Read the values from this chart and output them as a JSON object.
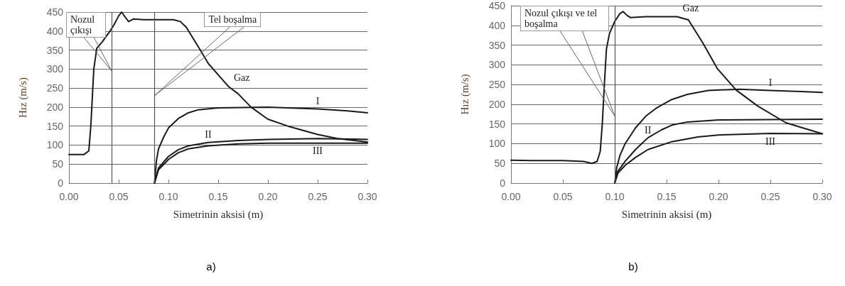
{
  "chart_data": [
    {
      "type": "line",
      "xlabel": "Simetrinin aksisi (m)",
      "ylabel": "Hız (m/s)",
      "xlim": [
        0,
        0.3
      ],
      "xticks": [
        {
          "value": 0,
          "label": "0.00"
        },
        {
          "value": 0.05,
          "label": "0.05"
        },
        {
          "value": 0.1,
          "label": "0.10"
        },
        {
          "value": 0.15,
          "label": "0.15"
        },
        {
          "value": 0.2,
          "label": "0.20"
        },
        {
          "value": 0.25,
          "label": "0.25"
        },
        {
          "value": 0.3,
          "label": "0.30"
        }
      ],
      "ylim": [
        0,
        450
      ],
      "yticks": [
        0,
        50,
        100,
        150,
        200,
        250,
        300,
        350,
        400,
        450
      ],
      "grid": "y",
      "legend": false,
      "marker": "none",
      "line_style": "solid",
      "series": [
        {
          "name": "Gaz",
          "color": "#1a1a1a",
          "x": [
            0,
            0.015,
            0.02,
            0.022,
            0.025,
            0.028,
            0.033,
            0.04,
            0.045,
            0.05,
            0.053,
            0.057,
            0.06,
            0.065,
            0.075,
            0.105,
            0.112,
            0.118,
            0.125,
            0.132,
            0.14,
            0.15,
            0.16,
            0.17,
            0.183,
            0.2,
            0.22,
            0.25,
            0.27,
            0.3
          ],
          "values": [
            75,
            75,
            85,
            150,
            300,
            355,
            370,
            395,
            415,
            440,
            450,
            435,
            425,
            432,
            430,
            430,
            425,
            410,
            380,
            350,
            315,
            285,
            255,
            235,
            200,
            168,
            150,
            128,
            117,
            108
          ]
        },
        {
          "name": "I",
          "color": "#1a1a1a",
          "x": [
            0.086,
            0.088,
            0.09,
            0.095,
            0.1,
            0.11,
            0.12,
            0.13,
            0.15,
            0.2,
            0.25,
            0.28,
            0.3
          ],
          "values": [
            0,
            60,
            90,
            120,
            145,
            170,
            185,
            193,
            198,
            200,
            195,
            190,
            185
          ]
        },
        {
          "name": "II",
          "color": "#1a1a1a",
          "x": [
            0.086,
            0.09,
            0.1,
            0.11,
            0.12,
            0.14,
            0.17,
            0.2,
            0.25,
            0.3
          ],
          "values": [
            0,
            40,
            70,
            88,
            98,
            107,
            112,
            115,
            117,
            115
          ]
        },
        {
          "name": "III",
          "color": "#1a1a1a",
          "x": [
            0.086,
            0.09,
            0.1,
            0.11,
            0.12,
            0.14,
            0.17,
            0.2,
            0.25,
            0.3
          ],
          "values": [
            0,
            35,
            62,
            80,
            90,
            98,
            103,
            105,
            105,
            105
          ]
        }
      ],
      "ref_lines": [
        {
          "axis": "x",
          "value": 0.043,
          "color": "#555555"
        },
        {
          "axis": "x",
          "value": 0.086,
          "color": "#555555"
        }
      ],
      "annotations": [
        {
          "text": "Nozul çıkışı",
          "x": 0.043,
          "y": 295
        },
        {
          "text": "Tel boşalma",
          "x": 0.086,
          "y": 230
        },
        "a)"
      ]
    },
    {
      "type": "line",
      "xlabel": "Simetrinin aksisi (m)",
      "ylabel": "Hız (m/s)",
      "xlim": [
        0,
        0.3
      ],
      "xticks": [
        {
          "value": 0,
          "label": "0.00"
        },
        {
          "value": 0.05,
          "label": "0.05"
        },
        {
          "value": 0.1,
          "label": "0.10"
        },
        {
          "value": 0.15,
          "label": "0.15"
        },
        {
          "value": 0.2,
          "label": "0.20"
        },
        {
          "value": 0.25,
          "label": "0.25"
        },
        {
          "value": 0.3,
          "label": "0.30"
        }
      ],
      "ylim": [
        0,
        450
      ],
      "yticks": [
        0,
        50,
        100,
        150,
        200,
        250,
        300,
        350,
        400,
        450
      ],
      "grid": "y",
      "legend": false,
      "marker": "none",
      "line_style": "solid",
      "series": [
        {
          "name": "Gaz",
          "color": "#1a1a1a",
          "x": [
            0,
            0.02,
            0.05,
            0.07,
            0.078,
            0.083,
            0.086,
            0.088,
            0.09,
            0.092,
            0.095,
            0.1,
            0.105,
            0.108,
            0.112,
            0.115,
            0.13,
            0.16,
            0.171,
            0.185,
            0.199,
            0.217,
            0.238,
            0.265,
            0.3
          ],
          "values": [
            58,
            57,
            57,
            55,
            50,
            55,
            80,
            150,
            250,
            340,
            380,
            410,
            430,
            435,
            425,
            420,
            422,
            422,
            414,
            355,
            290,
            236,
            195,
            153,
            125
          ]
        },
        {
          "name": "I",
          "color": "#1a1a1a",
          "x": [
            0.1,
            0.102,
            0.105,
            0.11,
            0.12,
            0.13,
            0.14,
            0.155,
            0.17,
            0.19,
            0.22,
            0.25,
            0.28,
            0.3
          ],
          "values": [
            0,
            40,
            70,
            100,
            140,
            170,
            190,
            212,
            225,
            235,
            238,
            235,
            232,
            230
          ]
        },
        {
          "name": "II",
          "color": "#1a1a1a",
          "x": [
            0.1,
            0.103,
            0.11,
            0.12,
            0.132,
            0.145,
            0.155,
            0.17,
            0.2,
            0.25,
            0.3
          ],
          "values": [
            0,
            30,
            55,
            85,
            115,
            135,
            147,
            155,
            160,
            161,
            162
          ]
        },
        {
          "name": "III",
          "color": "#1a1a1a",
          "x": [
            0.1,
            0.103,
            0.11,
            0.12,
            0.132,
            0.155,
            0.18,
            0.2,
            0.25,
            0.3
          ],
          "values": [
            0,
            25,
            45,
            65,
            85,
            105,
            117,
            122,
            126,
            125
          ]
        }
      ],
      "ref_lines": [
        {
          "axis": "x",
          "value": 0.1,
          "color": "#555555"
        }
      ],
      "annotations": [
        {
          "text": "Nozul çıkışı ve tel boşalma",
          "x": 0.1,
          "y": 170
        },
        "b)"
      ]
    }
  ]
}
